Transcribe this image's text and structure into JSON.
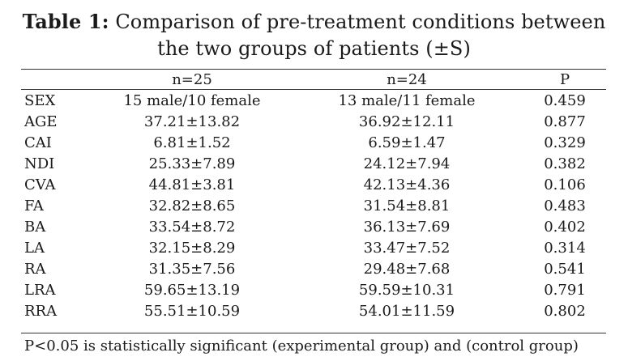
{
  "table": {
    "caption_label": "Table 1:",
    "caption_line1": "Comparison of pre-treatment conditions between",
    "caption_line2": "the two groups of patients (±S)",
    "headers": [
      "",
      "n=25",
      "n=24",
      "P"
    ],
    "rows": [
      {
        "variable": "SEX",
        "group1": "15 male/10 female",
        "group2": "13 male/11 female",
        "p": "0.459"
      },
      {
        "variable": "AGE",
        "group1": "37.21±13.82",
        "group2": "36.92±12.11",
        "p": "0.877"
      },
      {
        "variable": "CAI",
        "group1": "6.81±1.52",
        "group2": "6.59±1.47",
        "p": "0.329"
      },
      {
        "variable": "NDI",
        "group1": "25.33±7.89",
        "group2": "24.12±7.94",
        "p": "0.382"
      },
      {
        "variable": "CVA",
        "group1": "44.81±3.81",
        "group2": "42.13±4.36",
        "p": "0.106"
      },
      {
        "variable": "FA",
        "group1": "32.82±8.65",
        "group2": "31.54±8.81",
        "p": "0.483"
      },
      {
        "variable": "BA",
        "group1": "33.54±8.72",
        "group2": "36.13±7.69",
        "p": "0.402"
      },
      {
        "variable": "LA",
        "group1": "32.15±8.29",
        "group2": "33.47±7.52",
        "p": "0.314"
      },
      {
        "variable": "RA",
        "group1": "31.35±7.56",
        "group2": "29.48±7.68",
        "p": "0.541"
      },
      {
        "variable": "LRA",
        "group1": "59.65±13.19",
        "group2": "59.59±10.31",
        "p": "0.791"
      },
      {
        "variable": "RRA",
        "group1": "55.51±10.59",
        "group2": "54.01±11.59",
        "p": "0.802"
      }
    ],
    "footnote": "P<0.05 is statistically significant (experimental group) and (control group)"
  }
}
